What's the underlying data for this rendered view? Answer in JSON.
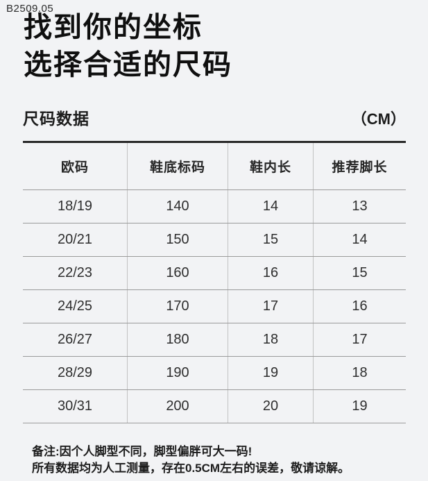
{
  "page": {
    "code": "B2509.05",
    "title_line1": "找到你的坐标",
    "title_line2": "选择合适的尺码"
  },
  "size_section": {
    "label": "尺码数据",
    "unit": "（CM）"
  },
  "chart_data": {
    "type": "table",
    "title": "尺码数据",
    "unit": "CM",
    "columns": [
      "欧码",
      "鞋底标码",
      "鞋内长",
      "推荐脚长"
    ],
    "rows": [
      [
        "18/19",
        "140",
        "14",
        "13"
      ],
      [
        "20/21",
        "150",
        "15",
        "14"
      ],
      [
        "22/23",
        "160",
        "16",
        "15"
      ],
      [
        "24/25",
        "170",
        "17",
        "16"
      ],
      [
        "26/27",
        "180",
        "18",
        "17"
      ],
      [
        "28/29",
        "190",
        "19",
        "18"
      ],
      [
        "30/31",
        "200",
        "20",
        "19"
      ]
    ]
  },
  "footnote": {
    "line1": "备注:因个人脚型不同，脚型偏胖可大一码!",
    "line2": "所有数据均为人工测量，存在0.5CM左右的误差，敬请谅解。"
  },
  "colors": {
    "background": "#f2f3f5",
    "text": "#1a1a1a",
    "line_strong": "#262626",
    "line_row": "#9a9a9a",
    "line_column": "#c2c2c2"
  }
}
